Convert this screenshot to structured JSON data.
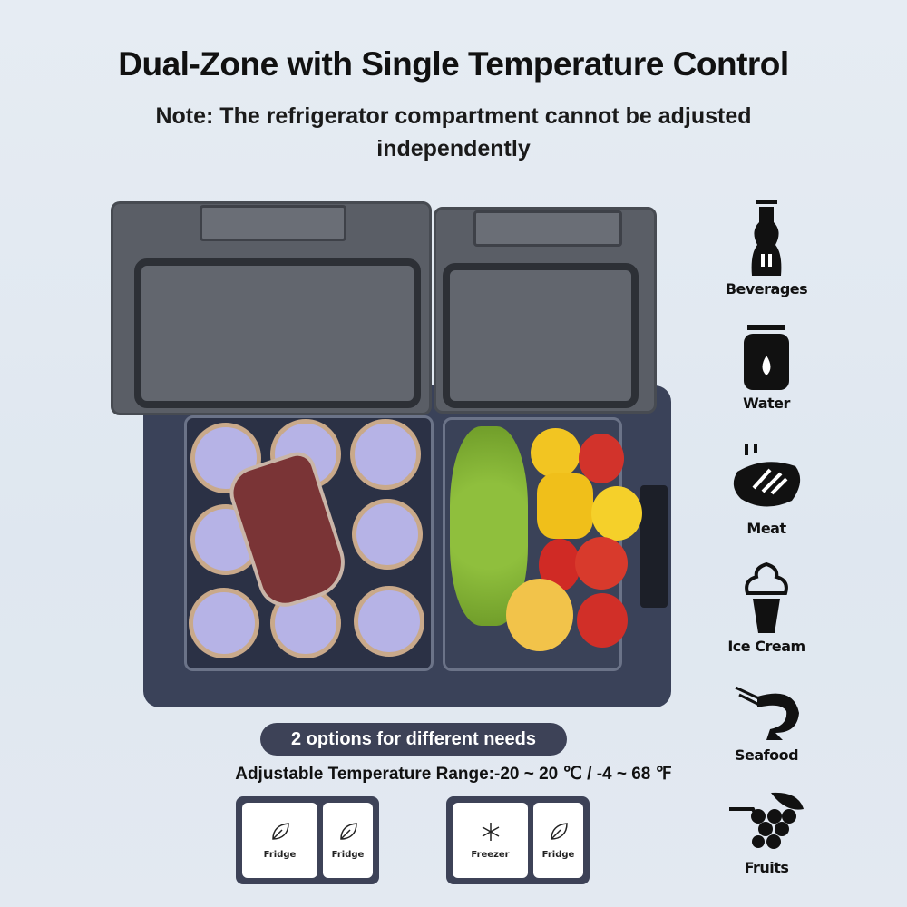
{
  "title": "Dual-Zone with Single Temperature Control",
  "note": {
    "line1": "Note: The refrigerator compartment cannot be adjusted",
    "line2": "independently"
  },
  "options_pill": "2 options for different needs",
  "temperature_range": "Adjustable Temperature Range:-20 ~ 20 ℃ / -4 ~ 68 ℉",
  "options": [
    {
      "zones": [
        {
          "label": "Fridge",
          "icon": "leaf-icon"
        },
        {
          "label": "Fridge",
          "icon": "leaf-icon"
        }
      ]
    },
    {
      "zones": [
        {
          "label": "Freezer",
          "icon": "snowflake-icon"
        },
        {
          "label": "Fridge",
          "icon": "leaf-icon"
        }
      ]
    }
  ],
  "uses": [
    {
      "label": "Beverages",
      "icon": "bottle-icon"
    },
    {
      "label": "Water",
      "icon": "jar-icon"
    },
    {
      "label": "Meat",
      "icon": "steak-icon"
    },
    {
      "label": "Ice Cream",
      "icon": "ice-cream-icon"
    },
    {
      "label": "Seafood",
      "icon": "shrimp-icon"
    },
    {
      "label": "Fruits",
      "icon": "grapes-icon"
    }
  ],
  "colors": {
    "accent": "#3d4257",
    "body": "#3a4259",
    "lid": "#5a5e66"
  }
}
